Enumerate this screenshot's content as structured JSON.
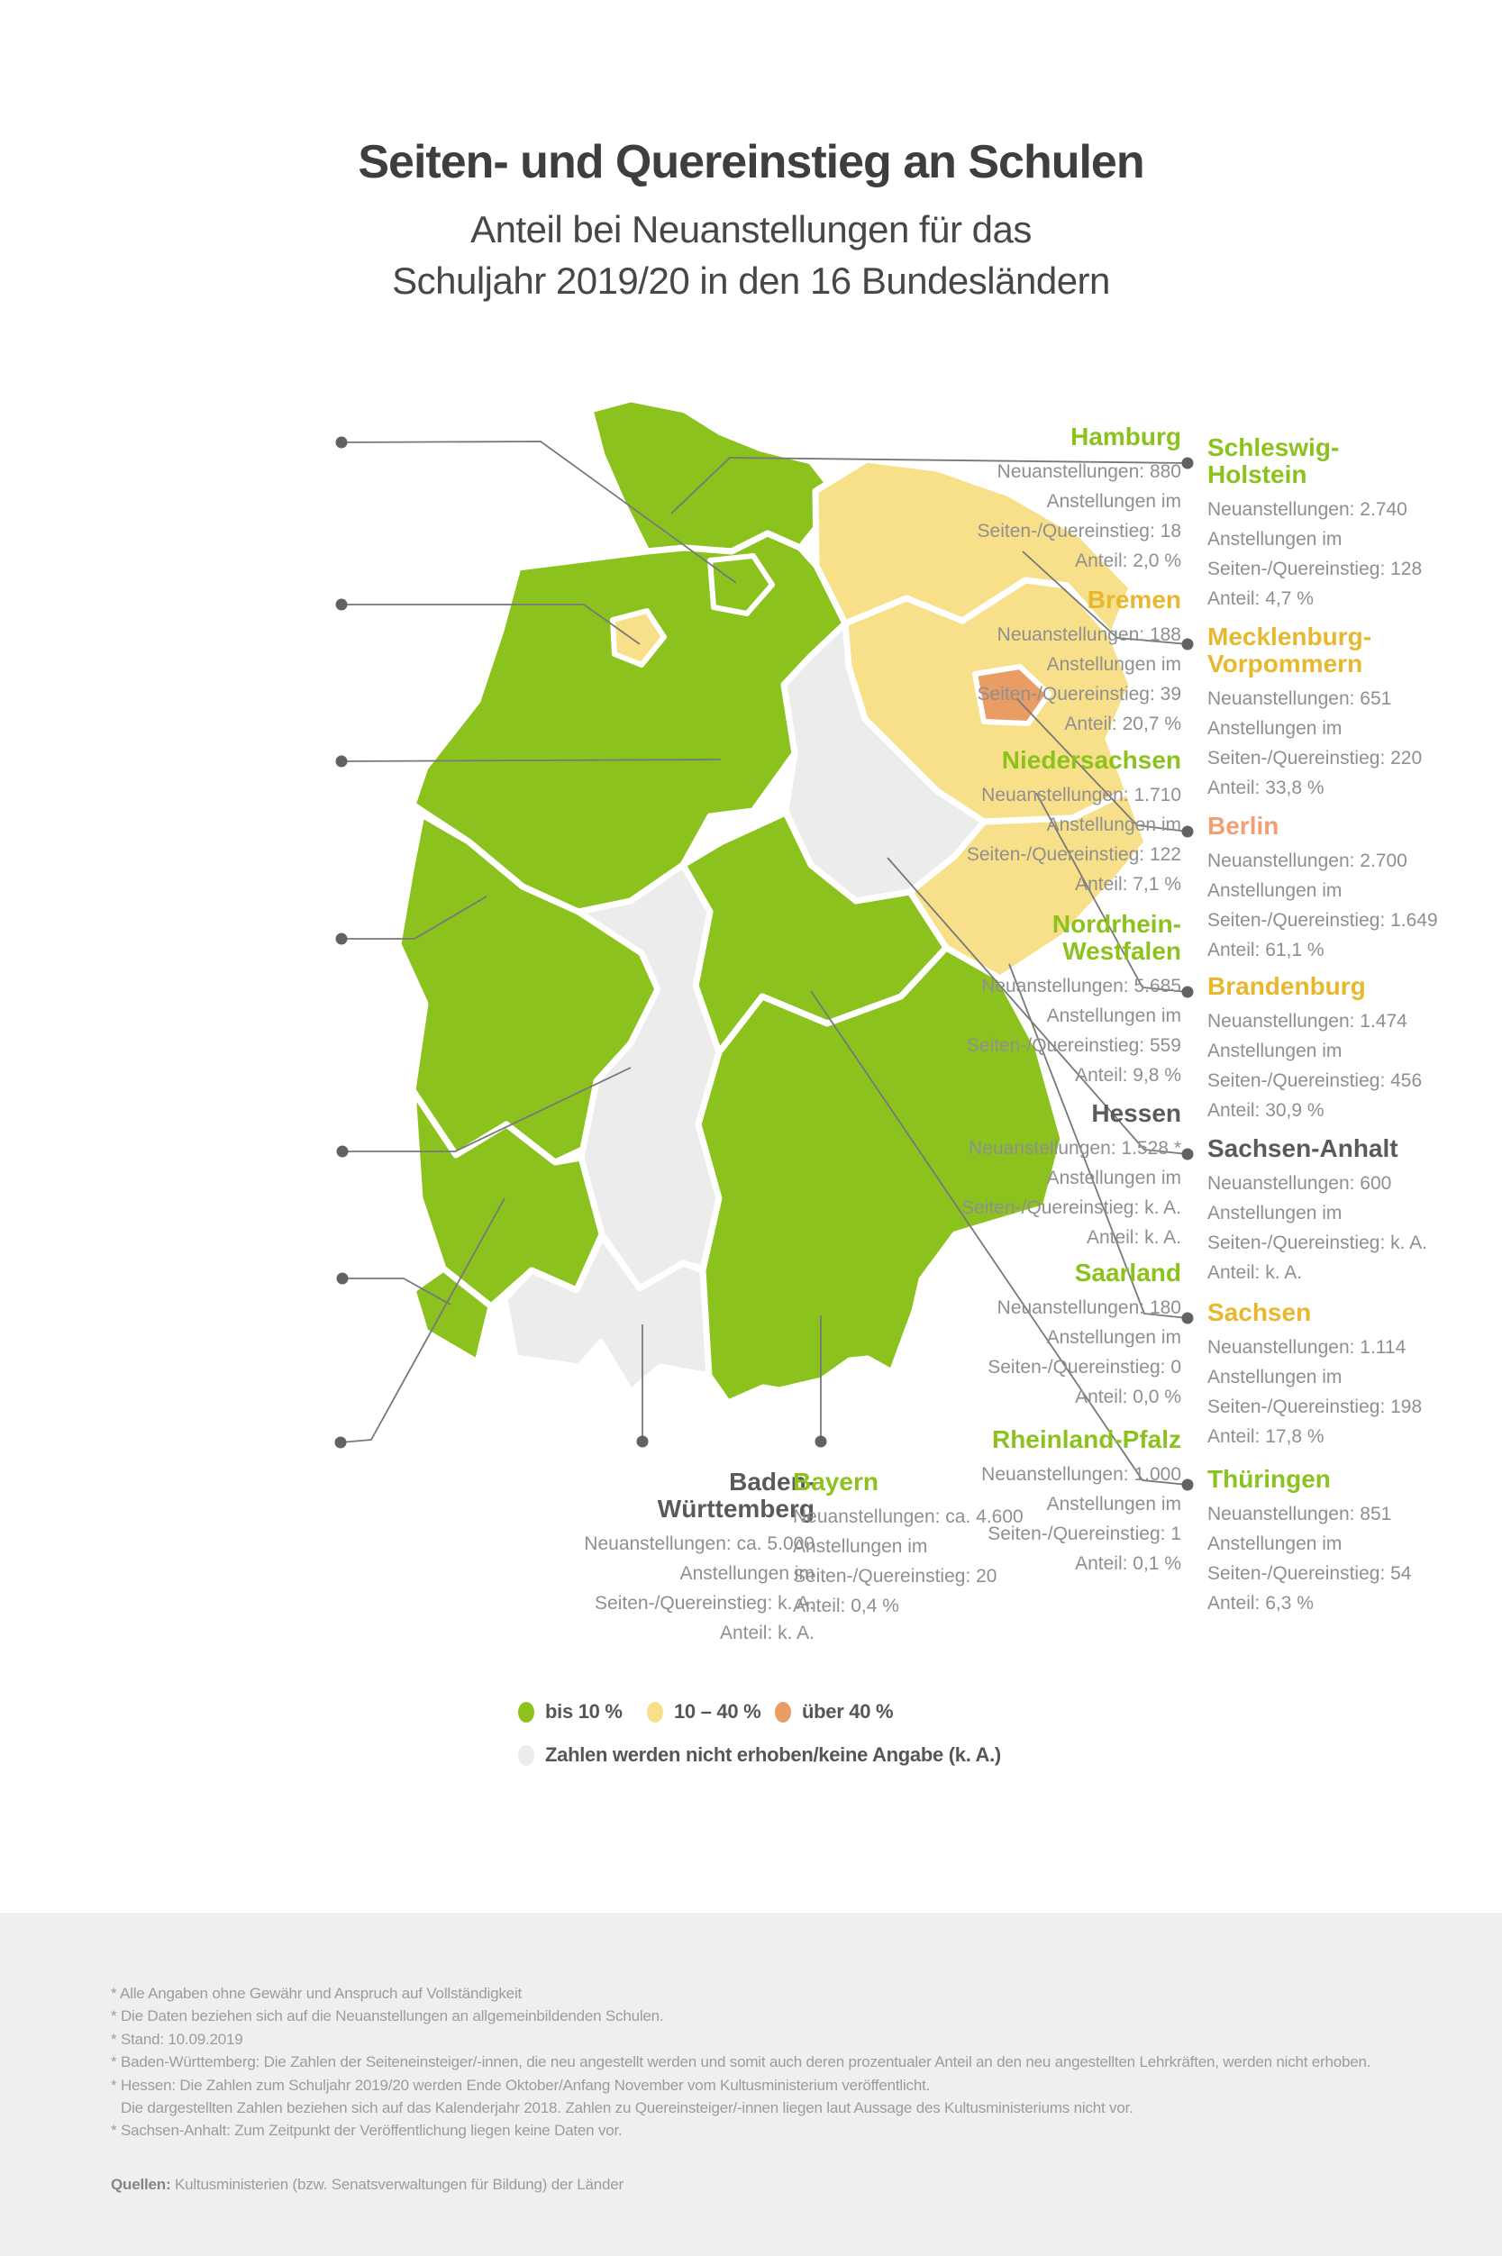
{
  "title": {
    "heading": "Seiten- und Quereinstieg an Schulen",
    "subtitle_line1": "Anteil bei Neuanstellungen für das",
    "subtitle_line2": "Schuljahr 2019/20 in den 16 Bundesländern"
  },
  "colors": {
    "green": "#8cc21e",
    "yellow": "#f8e08a",
    "orange": "#e99c63",
    "gray": "#ececec",
    "heading_green": "#8cc21e",
    "heading_yellow": "#e7b82d",
    "heading_orange": "#f0a072",
    "heading_gray": "#5a5a5c",
    "body_text": "#8f8f8f",
    "leader_line": "#77787a",
    "leader_dot": "#616264"
  },
  "legend": {
    "items": [
      {
        "id": "green",
        "label": "bis 10 %"
      },
      {
        "id": "yellow",
        "label": "10 – 40 %"
      },
      {
        "id": "orange",
        "label": "über 40 %"
      }
    ],
    "note": {
      "id": "gray",
      "label": "Zahlen werden nicht erhoben/keine Angabe (k. A.)"
    }
  },
  "states": [
    {
      "id": "hamburg",
      "name": "Hamburg",
      "name_lines": [
        "Hamburg"
      ],
      "category": "green",
      "stats": [
        "Neuanstellungen: 880",
        "Anstellungen im",
        "Seiten-/Quereinstieg: 18",
        "Anteil: 2,0 %"
      ]
    },
    {
      "id": "bremen",
      "name": "Bremen",
      "name_lines": [
        "Bremen"
      ],
      "category": "yellow",
      "stats": [
        "Neuanstellungen: 188",
        "Anstellungen im",
        "Seiten-/Quereinstieg: 39",
        "Anteil: 20,7 %"
      ]
    },
    {
      "id": "niedersachsen",
      "name": "Niedersachsen",
      "name_lines": [
        "Niedersachsen"
      ],
      "category": "green",
      "stats": [
        "Neuanstellungen: 1.710",
        "Anstellungen im",
        "Seiten-/Quereinstieg: 122",
        "Anteil: 7,1 %"
      ]
    },
    {
      "id": "nordrhein-westfalen",
      "name": "Nordrhein-Westfalen",
      "name_lines": [
        "Nordrhein-",
        "Westfalen"
      ],
      "category": "green",
      "stats": [
        "Neuanstellungen: 5.685",
        "Anstellungen im",
        "Seiten-/Quereinstieg: 559",
        "Anteil: 9,8 %"
      ]
    },
    {
      "id": "hessen",
      "name": "Hessen",
      "name_lines": [
        "Hessen"
      ],
      "category": "gray",
      "stats": [
        "Neuanstellungen: 1.528 *",
        "Anstellungen im",
        "Seiten-/Quereinstieg: k. A.",
        "Anteil: k. A."
      ]
    },
    {
      "id": "saarland",
      "name": "Saarland",
      "name_lines": [
        "Saarland"
      ],
      "category": "green",
      "stats": [
        "Neuanstellungen: 180",
        "Anstellungen im",
        "Seiten-/Quereinstieg: 0",
        "Anteil: 0,0 %"
      ]
    },
    {
      "id": "rheinland-pfalz",
      "name": "Rheinland-Pfalz",
      "name_lines": [
        "Rheinland-Pfalz"
      ],
      "category": "green",
      "stats": [
        "Neuanstellungen: 1.000",
        "Anstellungen im",
        "Seiten-/Quereinstieg: 1",
        "Anteil: 0,1 %"
      ]
    },
    {
      "id": "schleswig-holstein",
      "name": "Schleswig-Holstein",
      "name_lines": [
        "Schleswig-",
        "Holstein"
      ],
      "category": "green",
      "stats": [
        "Neuanstellungen: 2.740",
        "Anstellungen im",
        "Seiten-/Quereinstieg: 128",
        "Anteil: 4,7 %"
      ]
    },
    {
      "id": "mecklenburg-vorpommern",
      "name": "Mecklenburg-Vorpommern",
      "name_lines": [
        "Mecklenburg-",
        "Vorpommern"
      ],
      "category": "yellow",
      "stats": [
        "Neuanstellungen: 651",
        "Anstellungen im",
        "Seiten-/Quereinstieg: 220",
        "Anteil: 33,8 %"
      ]
    },
    {
      "id": "berlin",
      "name": "Berlin",
      "name_lines": [
        "Berlin"
      ],
      "category": "orange",
      "stats": [
        "Neuanstellungen: 2.700",
        "Anstellungen im",
        "Seiten-/Quereinstieg: 1.649",
        "Anteil: 61,1 %"
      ]
    },
    {
      "id": "brandenburg",
      "name": "Brandenburg",
      "name_lines": [
        "Brandenburg"
      ],
      "category": "yellow",
      "stats": [
        "Neuanstellungen: 1.474",
        "Anstellungen im",
        "Seiten-/Quereinstieg: 456",
        "Anteil: 30,9 %"
      ]
    },
    {
      "id": "sachsen-anhalt",
      "name": "Sachsen-Anhalt",
      "name_lines": [
        "Sachsen-Anhalt"
      ],
      "category": "gray",
      "stats": [
        "Neuanstellungen: 600",
        "Anstellungen im",
        "Seiten-/Quereinstieg: k. A.",
        "Anteil: k. A."
      ]
    },
    {
      "id": "sachsen",
      "name": "Sachsen",
      "name_lines": [
        "Sachsen"
      ],
      "category": "yellow",
      "stats": [
        "Neuanstellungen: 1.114",
        "Anstellungen im",
        "Seiten-/Quereinstieg: 198",
        "Anteil: 17,8 %"
      ]
    },
    {
      "id": "thueringen",
      "name": "Thüringen",
      "name_lines": [
        "Thüringen"
      ],
      "category": "green",
      "stats": [
        "Neuanstellungen: 851",
        "Anstellungen im",
        "Seiten-/Quereinstieg: 54",
        "Anteil: 6,3 %"
      ]
    },
    {
      "id": "baden-wuerttemberg",
      "name": "Baden-Württemberg",
      "name_lines": [
        "Baden-",
        "Württemberg"
      ],
      "category": "gray",
      "stats": [
        "Neuanstellungen: ca. 5.000",
        "Anstellungen im",
        "Seiten-/Quereinstieg: k. A.",
        "Anteil: k. A."
      ]
    },
    {
      "id": "bayern",
      "name": "Bayern",
      "name_lines": [
        "Bayern"
      ],
      "category": "green",
      "stats": [
        "Neuanstellungen: ca. 4.600",
        "Anstellungen im",
        "Seiten-/Quereinstieg: 20",
        "Anteil: 0,4 %"
      ]
    }
  ],
  "footnotes": [
    "* Alle Angaben ohne Gewähr und Anspruch auf Vollständigkeit",
    "* Die Daten beziehen sich auf die Neuanstellungen an allgemeinbildenden Schulen.",
    "* Stand: 10.09.2019",
    "* Baden-Württemberg: Die Zahlen der Seiteneinsteiger/-innen, die neu angestellt werden und somit auch deren prozentualer Anteil an den neu angestellten Lehrkräften, werden nicht erhoben.",
    "* Hessen: Die Zahlen zum Schuljahr 2019/20 werden Ende Oktober/Anfang November vom Kultusministerium veröffentlicht.",
    "Die dargestellten Zahlen beziehen sich auf das Kalenderjahr 2018. Zahlen zu Quereinsteiger/-innen liegen laut Aussage des Kultusministeriums nicht vor.",
    "* Sachsen-Anhalt: Zum Zeitpunkt der Veröffentlichung liegen keine Daten vor."
  ],
  "sources": {
    "prefix": "Quellen:",
    "text": " Kultusministerien (bzw. Senatsverwaltungen für Bildung) der Länder"
  },
  "chart_data": {
    "type": "heatmap",
    "subtype": "choropleth_map_germany_bundeslaender",
    "title": "Seiten- und Quereinstieg an Schulen",
    "subtitle": "Anteil bei Neuanstellungen für das Schuljahr 2019/20 in den 16 Bundesländern",
    "legend_position": "bottom-center",
    "legend_bins": [
      {
        "label": "bis 10 %",
        "color": "#8cc21e"
      },
      {
        "label": "10 – 40 %",
        "color": "#f8e08a"
      },
      {
        "label": "über 40 %",
        "color": "#e99c63"
      },
      {
        "label": "Zahlen werden nicht erhoben/keine Angabe (k. A.)",
        "color": "#ececec"
      }
    ],
    "records": [
      {
        "state": "Schleswig-Holstein",
        "neuanstellungen": "2.740",
        "seiten_quereinstieg": "128",
        "anteil": "4,7 %",
        "bin": "bis 10 %"
      },
      {
        "state": "Hamburg",
        "neuanstellungen": "880",
        "seiten_quereinstieg": "18",
        "anteil": "2,0 %",
        "bin": "bis 10 %"
      },
      {
        "state": "Bremen",
        "neuanstellungen": "188",
        "seiten_quereinstieg": "39",
        "anteil": "20,7 %",
        "bin": "10 – 40 %"
      },
      {
        "state": "Niedersachsen",
        "neuanstellungen": "1.710",
        "seiten_quereinstieg": "122",
        "anteil": "7,1 %",
        "bin": "bis 10 %"
      },
      {
        "state": "Mecklenburg-Vorpommern",
        "neuanstellungen": "651",
        "seiten_quereinstieg": "220",
        "anteil": "33,8 %",
        "bin": "10 – 40 %"
      },
      {
        "state": "Berlin",
        "neuanstellungen": "2.700",
        "seiten_quereinstieg": "1.649",
        "anteil": "61,1 %",
        "bin": "über 40 %"
      },
      {
        "state": "Brandenburg",
        "neuanstellungen": "1.474",
        "seiten_quereinstieg": "456",
        "anteil": "30,9 %",
        "bin": "10 – 40 %"
      },
      {
        "state": "Sachsen-Anhalt",
        "neuanstellungen": "600",
        "seiten_quereinstieg": "k. A.",
        "anteil": "k. A.",
        "bin": "keine Angabe"
      },
      {
        "state": "Sachsen",
        "neuanstellungen": "1.114",
        "seiten_quereinstieg": "198",
        "anteil": "17,8 %",
        "bin": "10 – 40 %"
      },
      {
        "state": "Thüringen",
        "neuanstellungen": "851",
        "seiten_quereinstieg": "54",
        "anteil": "6,3 %",
        "bin": "bis 10 %"
      },
      {
        "state": "Nordrhein-Westfalen",
        "neuanstellungen": "5.685",
        "seiten_quereinstieg": "559",
        "anteil": "9,8 %",
        "bin": "bis 10 %"
      },
      {
        "state": "Hessen",
        "neuanstellungen": "1.528 *",
        "seiten_quereinstieg": "k. A.",
        "anteil": "k. A.",
        "bin": "keine Angabe"
      },
      {
        "state": "Rheinland-Pfalz",
        "neuanstellungen": "1.000",
        "seiten_quereinstieg": "1",
        "anteil": "0,1 %",
        "bin": "bis 10 %"
      },
      {
        "state": "Saarland",
        "neuanstellungen": "180",
        "seiten_quereinstieg": "0",
        "anteil": "0,0 %",
        "bin": "bis 10 %"
      },
      {
        "state": "Baden-Württemberg",
        "neuanstellungen": "ca. 5.000",
        "seiten_quereinstieg": "k. A.",
        "anteil": "k. A.",
        "bin": "keine Angabe"
      },
      {
        "state": "Bayern",
        "neuanstellungen": "ca. 4.600",
        "seiten_quereinstieg": "20",
        "anteil": "0,4 %",
        "bin": "bis 10 %"
      }
    ]
  }
}
